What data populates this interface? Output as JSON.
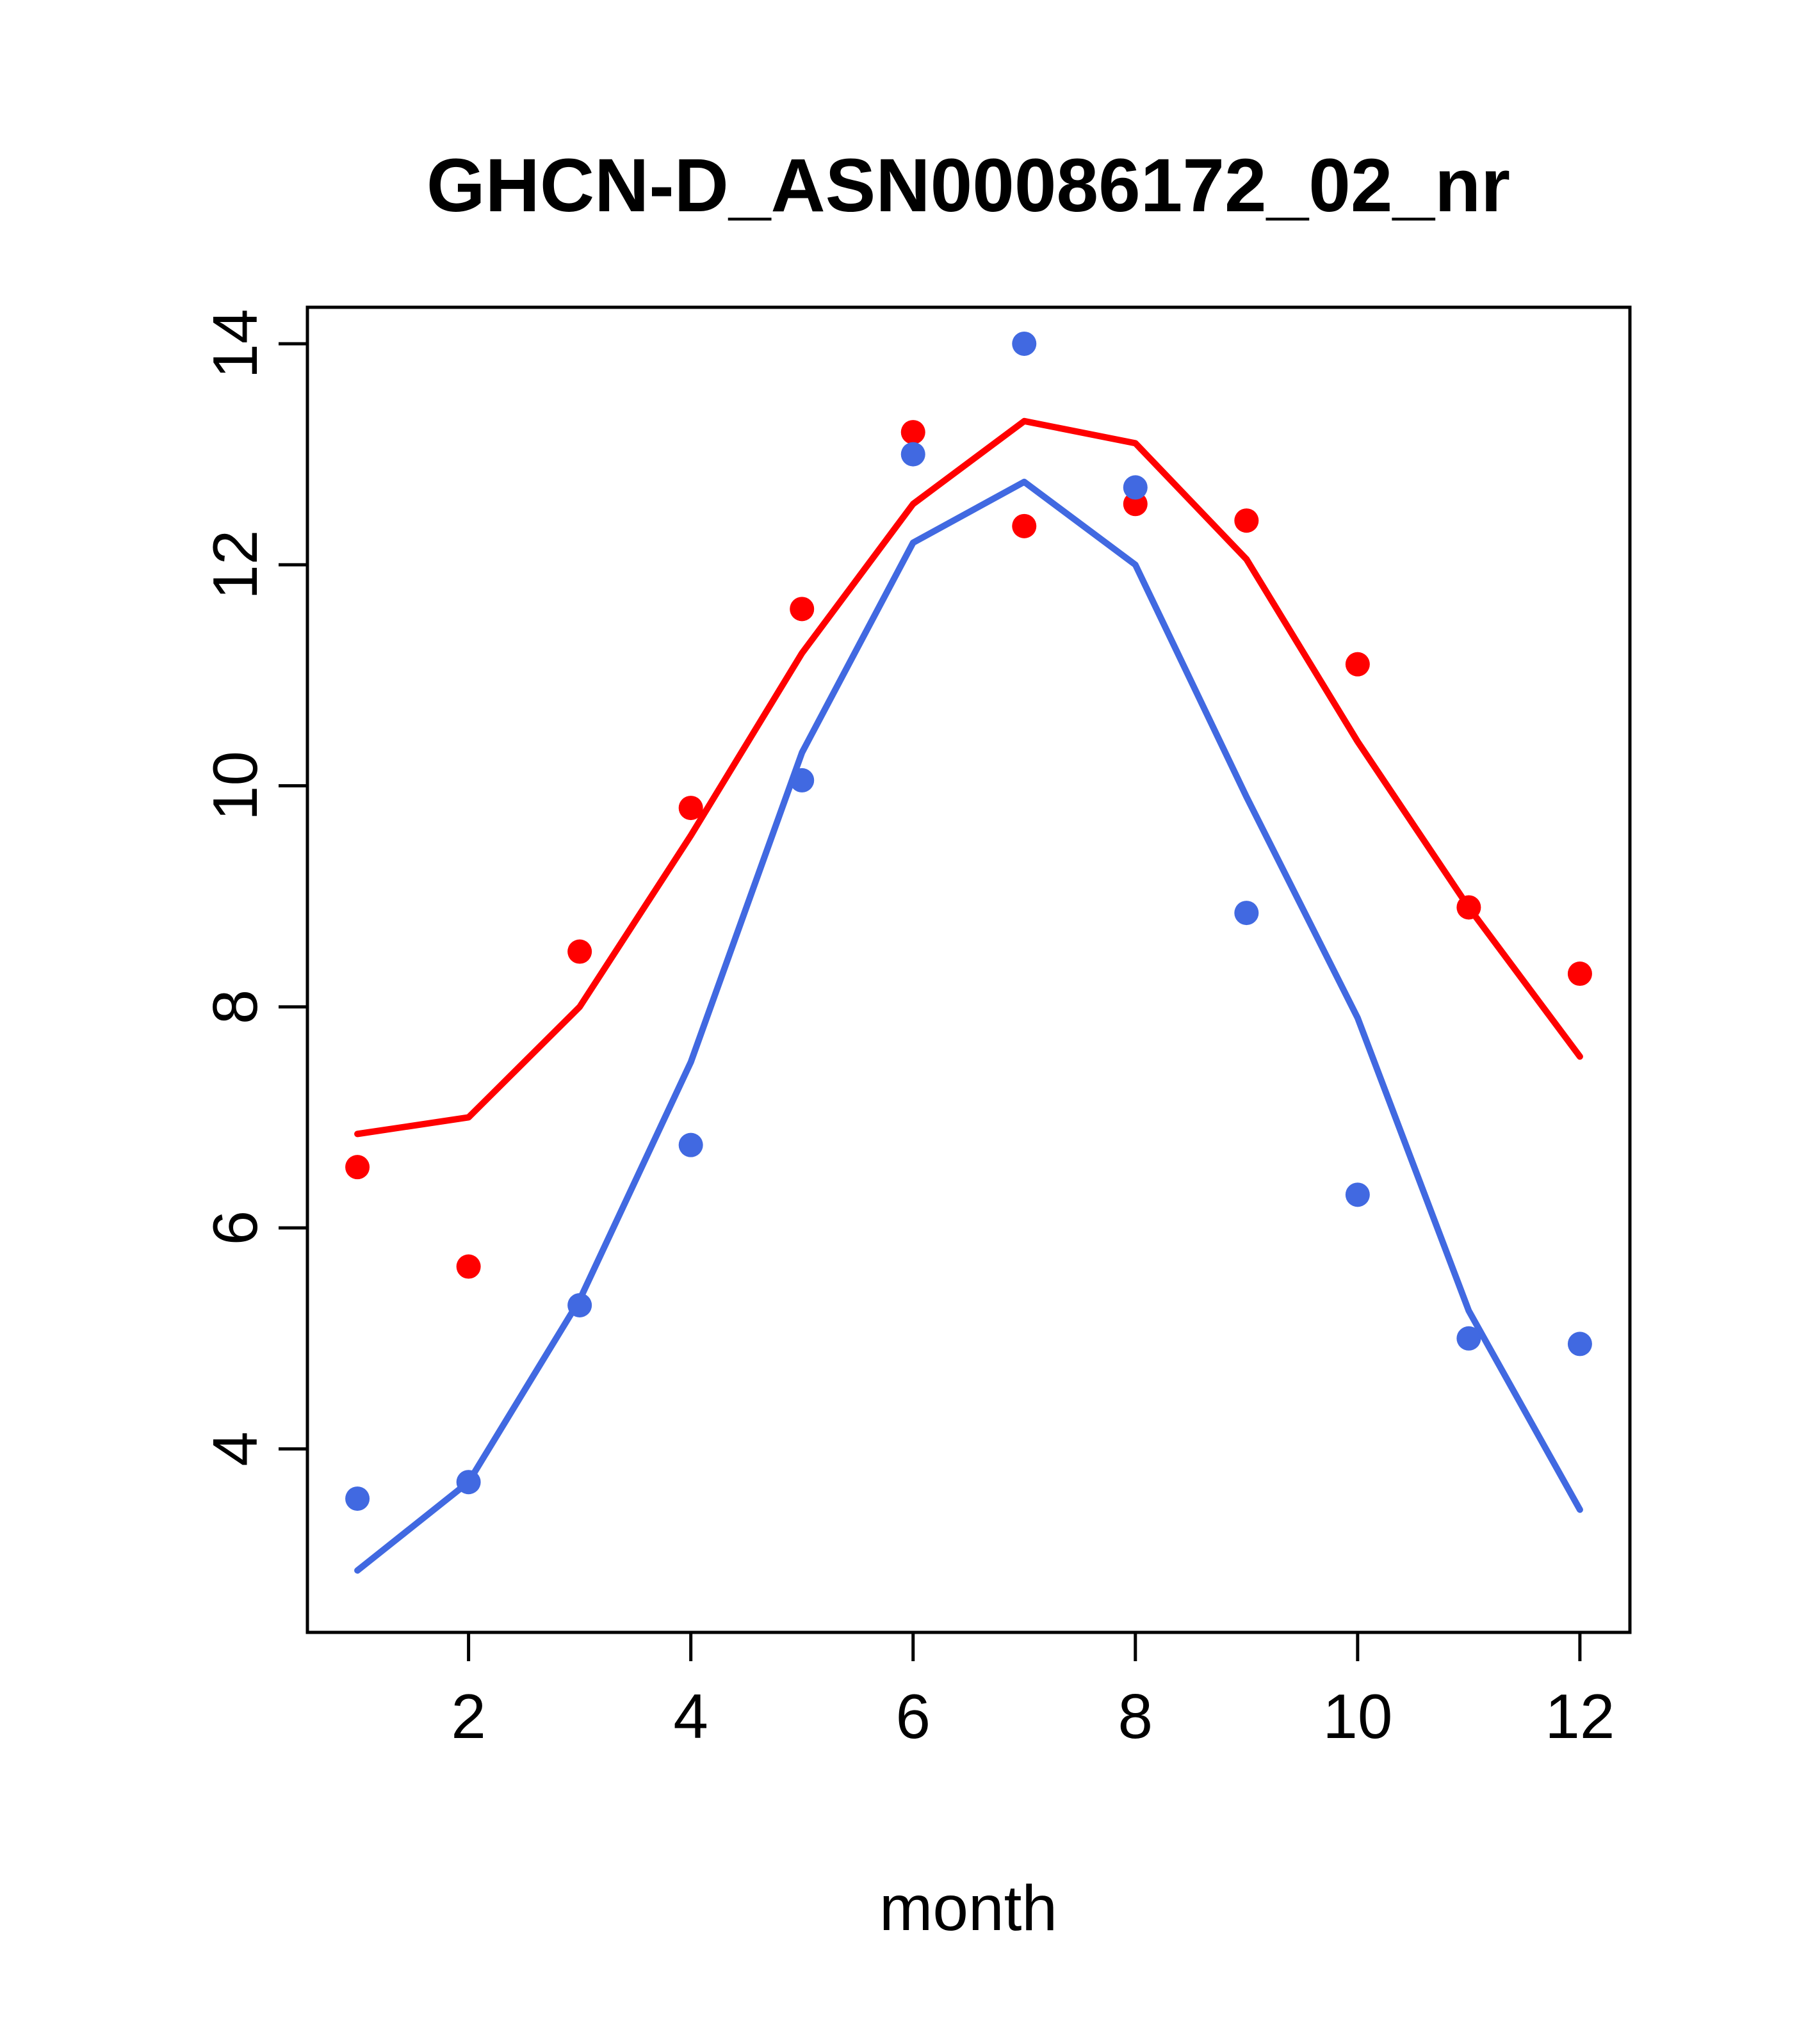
{
  "chart_data": {
    "type": "line",
    "title": "GHCN-D_ASN00086172_02_nr",
    "xlabel": "month",
    "ylabel": "",
    "x": [
      1,
      2,
      3,
      4,
      5,
      6,
      7,
      8,
      9,
      10,
      11,
      12
    ],
    "xticks": [
      2,
      4,
      6,
      8,
      10,
      12
    ],
    "yticks": [
      4,
      6,
      8,
      10,
      12,
      14
    ],
    "xlim": [
      0.55,
      12.45
    ],
    "ylim": [
      2.34,
      14.33
    ],
    "grid": false,
    "legend": "none",
    "colors": {
      "red": "#FF0000",
      "blue": "#4169E1"
    },
    "series": [
      {
        "name": "red-smooth-line",
        "kind": "line",
        "color": "#FF0000",
        "values": [
          6.85,
          7.0,
          8.0,
          9.55,
          11.2,
          12.55,
          13.3,
          13.1,
          12.05,
          10.4,
          8.9,
          7.55
        ]
      },
      {
        "name": "blue-smooth-line",
        "kind": "line",
        "color": "#4169E1",
        "values": [
          2.9,
          3.7,
          5.35,
          7.5,
          10.3,
          12.2,
          12.75,
          12.0,
          9.9,
          7.9,
          5.25,
          3.45
        ]
      },
      {
        "name": "red-points",
        "kind": "scatter",
        "color": "#FF0000",
        "values": [
          6.55,
          5.65,
          8.5,
          9.8,
          11.6,
          13.2,
          12.35,
          12.55,
          12.4,
          11.1,
          8.9,
          8.3
        ]
      },
      {
        "name": "blue-points",
        "kind": "scatter",
        "color": "#4169E1",
        "values": [
          3.55,
          3.7,
          5.3,
          6.75,
          10.05,
          13.0,
          14.0,
          12.7,
          8.85,
          6.3,
          5.0,
          4.95
        ]
      }
    ]
  }
}
